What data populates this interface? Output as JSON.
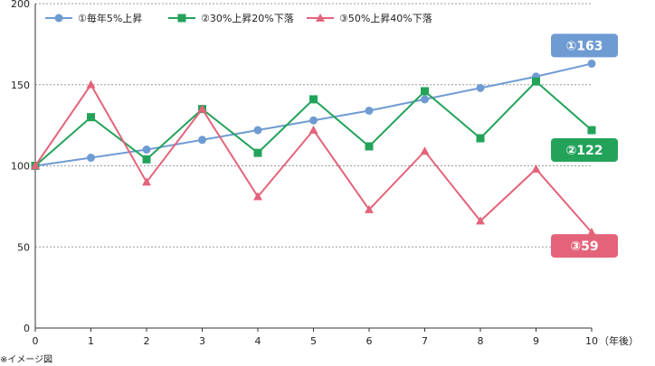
{
  "chart_data": {
    "type": "line",
    "x": [
      0,
      1,
      2,
      3,
      4,
      5,
      6,
      7,
      8,
      9,
      10
    ],
    "x_tick_labels": [
      "0",
      "1",
      "2",
      "3",
      "4",
      "5",
      "6",
      "7",
      "8",
      "9",
      "10"
    ],
    "x_unit": "（年後）",
    "ylim": [
      0,
      200
    ],
    "y_ticks": [
      0,
      50,
      100,
      150,
      200
    ],
    "grid": "horizontal dashed",
    "legend_placement": "top-left",
    "series": [
      {
        "name": "①毎年5%上昇",
        "color": "#6f9bd3",
        "marker": "circle",
        "values": [
          100,
          105,
          110,
          116,
          122,
          128,
          134,
          141,
          148,
          155,
          163
        ],
        "end_label": "①163"
      },
      {
        "name": "②30%上昇20%下落",
        "color": "#23a35a",
        "marker": "square",
        "values": [
          100,
          130,
          104,
          135,
          108,
          141,
          112,
          146,
          117,
          152,
          122
        ],
        "end_label": "②122"
      },
      {
        "name": "③50%上昇40%下落",
        "color": "#e4637a",
        "marker": "triangle",
        "values": [
          100,
          150,
          90,
          135,
          81,
          122,
          73,
          109,
          66,
          98,
          59
        ],
        "end_label": "③59"
      }
    ],
    "footnote": "※イメージ図"
  }
}
